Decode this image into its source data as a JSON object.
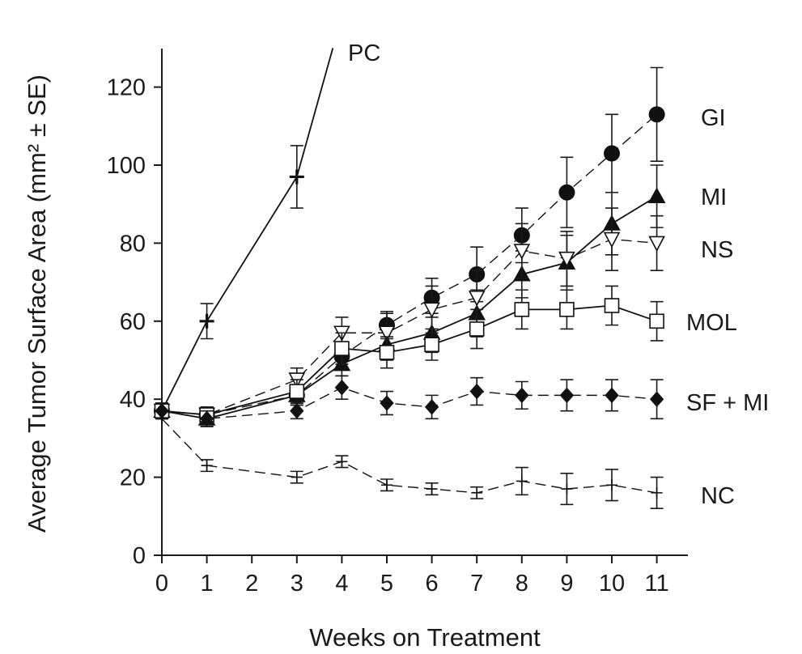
{
  "chart_data": {
    "type": "line",
    "title": "",
    "xlabel": "Weeks on Treatment",
    "ylabel": "Average Tumor Surface Area (mm² ± SE)",
    "xlim": [
      0,
      12
    ],
    "ylim": [
      0,
      130
    ],
    "x_ticks": [
      0,
      1,
      2,
      3,
      4,
      5,
      6,
      7,
      8,
      9,
      10,
      11
    ],
    "y_ticks": [
      0,
      20,
      40,
      60,
      80,
      100,
      120
    ],
    "grid": false,
    "legend": "inline labels at line ends",
    "series": [
      {
        "name": "PC",
        "marker": "plus-bold",
        "line": "solid",
        "x": [
          0,
          1,
          3,
          3.8
        ],
        "y": [
          37,
          60,
          97,
          130
        ],
        "err": [
          0,
          4.5,
          8,
          0
        ]
      },
      {
        "name": "GI",
        "marker": "circle-filled",
        "line": "dashed",
        "x": [
          0,
          1,
          3,
          4,
          5,
          6,
          7,
          8,
          9,
          10,
          11
        ],
        "y": [
          37,
          36,
          41,
          51,
          59,
          66,
          72,
          82,
          93,
          103,
          113
        ],
        "err": [
          2,
          2,
          2.5,
          3,
          3.5,
          5,
          7,
          7,
          9,
          10,
          12
        ]
      },
      {
        "name": "MI",
        "marker": "triangle-filled",
        "line": "solid",
        "x": [
          0,
          1,
          3,
          4,
          5,
          6,
          7,
          8,
          9,
          10,
          11
        ],
        "y": [
          37,
          35,
          41,
          49,
          54,
          57,
          62,
          72,
          75,
          85,
          92
        ],
        "err": [
          2,
          2,
          2.5,
          3,
          4,
          5,
          6,
          6,
          7,
          8,
          8
        ]
      },
      {
        "name": "NS",
        "marker": "triangle-down-open",
        "line": "dashed",
        "x": [
          0,
          1,
          3,
          4,
          5,
          6,
          7,
          8,
          9,
          10,
          11
        ],
        "y": [
          37,
          36,
          45,
          57,
          57,
          63,
          66,
          78,
          76,
          81,
          80
        ],
        "err": [
          2,
          2,
          3,
          4,
          5,
          6,
          7,
          7,
          7,
          8,
          7
        ]
      },
      {
        "name": "MOL",
        "marker": "square-open",
        "line": "solid",
        "x": [
          0,
          1,
          3,
          4,
          5,
          6,
          7,
          8,
          9,
          10,
          11
        ],
        "y": [
          37,
          36,
          42,
          53,
          52,
          54,
          58,
          63,
          63,
          64,
          60
        ],
        "err": [
          2,
          2,
          3,
          4,
          4,
          4,
          5,
          5,
          5,
          5,
          5
        ]
      },
      {
        "name": "SF + MI",
        "marker": "diamond-filled",
        "line": "dashed",
        "x": [
          0,
          1,
          3,
          4,
          5,
          6,
          7,
          8,
          9,
          10,
          11
        ],
        "y": [
          37,
          35,
          37,
          43,
          39,
          38,
          42,
          41,
          41,
          41,
          40
        ],
        "err": [
          2,
          2,
          2,
          3,
          3,
          3,
          3.5,
          3.5,
          4,
          4,
          5
        ]
      },
      {
        "name": "NC",
        "marker": "plus-thin",
        "line": "dashed",
        "x": [
          0,
          1,
          3,
          4,
          5,
          6,
          7,
          8,
          9,
          10,
          11
        ],
        "y": [
          35,
          23,
          20,
          24,
          18,
          17,
          16,
          19,
          17,
          18,
          16
        ],
        "err": [
          0,
          1.5,
          1.5,
          1.5,
          1.5,
          1.5,
          1.5,
          3.5,
          4,
          4,
          4
        ]
      }
    ]
  }
}
